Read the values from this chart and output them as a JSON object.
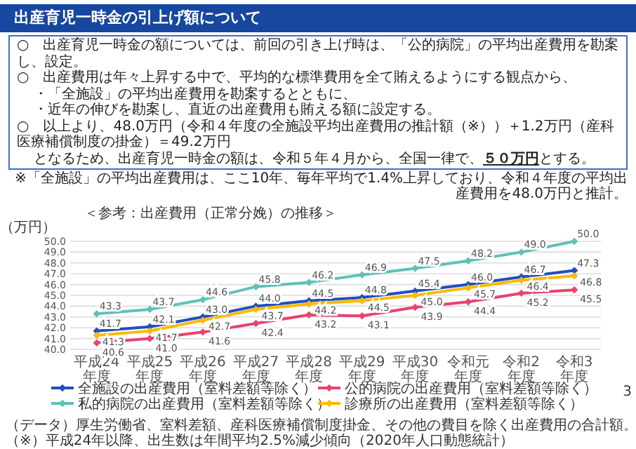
{
  "chart_data": {
    "type": "line",
    "title": "出産育児一時金の引上げ額について",
    "subtitle": "＜参考：出産費用（正常分娩）の推移＞",
    "ylabel": "（万円）",
    "annotations": [
      "○　出産育児一時金の額については、前回の引き上げ時は、「公的病院」の平均出産費用を勘案し、設定。",
      "○　出産費用は年々上昇する中で、平均的な標準費用を全て賄えるようにする観点から、",
      "・「全施設」の平均出産費用を勘案するとともに、",
      "・近年の伸びを勘案し、直近の出産費用も賄える額に設定する。",
      "○　以上より、48.0万円（令和４年度の全施設平均出産費用の推計額（※））＋1.2万円（産科医療補償制度の掛金）＝49.2万円",
      "となるため、出産育児一時金の額は、令和５年４月から、全国一律で、**５０万円**とする。",
      "※「全施設」の平均出産費用は、ここ10年、毎年平均で1.4%上昇しており、令和４年度の平均出産費用を48.0万円と推計。",
      "（データ）厚生労働省、室料差額、産科医療補償制度掛金、その他の費目を除く出産費用の合計額。",
      "（※）平成24年以降、出生数は年間平均2.5%減少傾向（2020年人口動態統計）",
      "3"
    ],
    "categories": [
      "平成24年度",
      "平成25年度",
      "平成26年度",
      "平成27年度",
      "平成28年度",
      "平成29年度",
      "平成30年度",
      "令和元年度",
      "令和2年度",
      "令和3年度"
    ],
    "series": [
      {
        "name": "全施設の出産費用（室料差額等除く）",
        "color": "#1f4fbf",
        "values": [
          41.7,
          42.1,
          43.0,
          44.0,
          44.5,
          44.8,
          45.4,
          46.0,
          46.7,
          47.3
        ],
        "value_labels": [
          "41.7",
          "42.1",
          "43.0",
          "44.0",
          "44.5",
          "44.8",
          "45.4",
          "46.0",
          "46.7",
          "47.3"
        ]
      },
      {
        "name": "私的病院の出産費用（室料差額等除く）",
        "color": "#5dc1b9",
        "values": [
          43.3,
          43.7,
          44.6,
          45.8,
          46.2,
          46.9,
          47.5,
          48.2,
          49.0,
          50.0
        ],
        "value_labels": [
          "43.3",
          "43.7",
          "44.6",
          "45.8",
          "46.2",
          "46.9",
          "47.5",
          "48.2",
          "49.0",
          "50.0"
        ]
      },
      {
        "name": "公的病院の出産費用（室料差額等除く）",
        "color": "#e8436e",
        "values": [
          40.6,
          41.0,
          41.6,
          42.4,
          43.2,
          43.1,
          43.9,
          44.4,
          45.2,
          45.5
        ],
        "value_labels": [
          "40.6",
          "41.0",
          "41.6",
          "42.4",
          "43.2",
          "43.1",
          "43.9",
          "44.4",
          "45.2",
          "45.5"
        ]
      },
      {
        "name": "診療所の出産費用（室料差額等除く）",
        "color": "#ffb900",
        "values": [
          41.3,
          41.7,
          42.7,
          43.7,
          44.2,
          44.5,
          45.0,
          45.7,
          46.4,
          46.8
        ],
        "value_labels": [
          "41.3",
          "41.7",
          "42.7",
          "43.7",
          "44.2",
          "44.5",
          "45.0",
          "45.7",
          "46.4",
          "46.8"
        ]
      }
    ],
    "ylim": [
      40,
      50
    ],
    "yticks": [
      {
        "value": 40,
        "label": "40.0"
      },
      {
        "value": 41,
        "label": "41.0"
      },
      {
        "value": 42,
        "label": "42.0"
      },
      {
        "value": 43,
        "label": "43.0"
      },
      {
        "value": 44,
        "label": "44.0"
      },
      {
        "value": 45,
        "label": "45.0"
      },
      {
        "value": 46,
        "label": "46.0"
      },
      {
        "value": 47,
        "label": "47.0"
      },
      {
        "value": 48,
        "label": "48.0"
      },
      {
        "value": 49,
        "label": "49.0"
      },
      {
        "value": 50,
        "label": "50.0"
      }
    ],
    "grid": "y",
    "legend": "bottom",
    "marker": "diamond"
  }
}
